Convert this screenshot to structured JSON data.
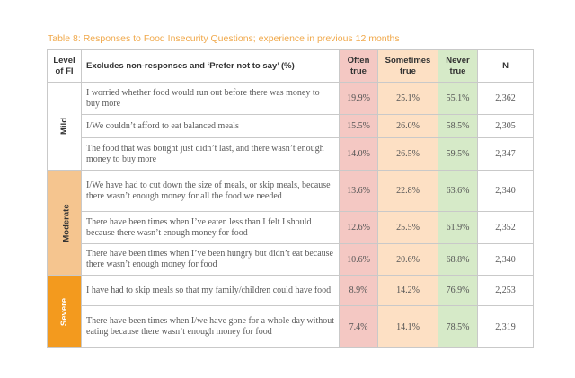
{
  "caption": "Table 8: Responses to Food Insecurity Questions; experience in previous 12 months",
  "headers": {
    "level_line1": "Level",
    "level_line2": "of FI",
    "question": "Excludes non-responses and ‘Prefer not to say’ (%)",
    "often_line1": "Often",
    "often_line2": "true",
    "sometimes_line1": "Sometimes",
    "sometimes_line2": "true",
    "never_line1": "Never",
    "never_line2": "true",
    "n": "N"
  },
  "groups": [
    {
      "level": "Mild",
      "rows": [
        {
          "question": "I worried whether food would run out before there was money to buy more",
          "often": "19.9%",
          "sometimes": "25.1%",
          "never": "55.1%",
          "n": "2,362"
        },
        {
          "question": "I/We couldn’t afford to eat balanced meals",
          "often": "15.5%",
          "sometimes": "26.0%",
          "never": "58.5%",
          "n": "2,305"
        },
        {
          "question": "The food that was bought just didn’t last, and there wasn’t enough money to buy more",
          "often": "14.0%",
          "sometimes": "26.5%",
          "never": "59.5%",
          "n": "2,347"
        }
      ]
    },
    {
      "level": "Moderate",
      "rows": [
        {
          "question": "I/We have had to cut down the size of meals, or skip meals, because there wasn’t enough money for all the food we needed",
          "often": "13.6%",
          "sometimes": "22.8%",
          "never": "63.6%",
          "n": "2,340"
        },
        {
          "question": "There have been times when I’ve eaten less than I felt I should because there wasn’t enough money for food",
          "often": "12.6%",
          "sometimes": "25.5%",
          "never": "61.9%",
          "n": "2,352"
        },
        {
          "question": "There have been times when I’ve been hungry but didn’t eat because there wasn’t enough money for food",
          "often": "10.6%",
          "sometimes": "20.6%",
          "never": "68.8%",
          "n": "2,340"
        }
      ]
    },
    {
      "level": "Severe",
      "rows": [
        {
          "question": "I have had to skip meals so that my family/children could have food",
          "often": "8.9%",
          "sometimes": "14.2%",
          "never": "76.9%",
          "n": "2,253"
        },
        {
          "question": "There have been times when I/we have gone for a whole day without eating because there wasn’t enough money for food",
          "often": "7.4%",
          "sometimes": "14.1%",
          "never": "78.5%",
          "n": "2,319"
        }
      ]
    }
  ]
}
